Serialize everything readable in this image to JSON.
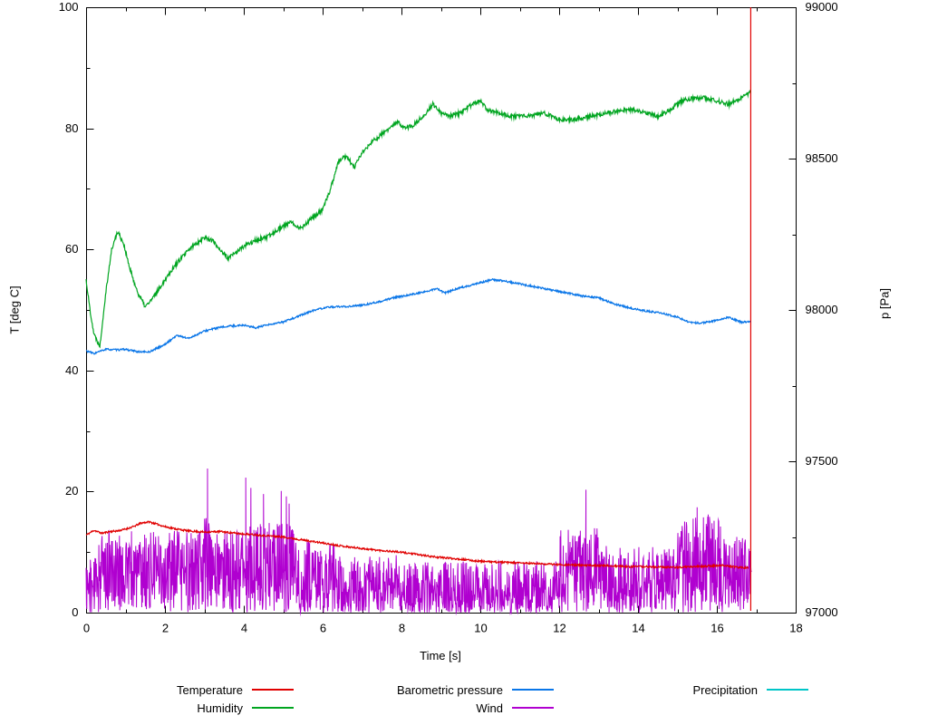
{
  "chart_data": {
    "type": "line",
    "title": "",
    "xlabel": "Time [s]",
    "ylabel_left": "T [deg C]",
    "ylabel_right": "p [Pa]",
    "x_range": [
      0,
      18
    ],
    "y_left_range": [
      0,
      100
    ],
    "y_right_range": [
      97000,
      99000
    ],
    "x_ticks": [
      0,
      2,
      4,
      6,
      8,
      10,
      12,
      14,
      16,
      18
    ],
    "x_minor_ticks": [
      1,
      3,
      5,
      7,
      9,
      11,
      13,
      15,
      17
    ],
    "y_left_ticks": [
      0,
      20,
      40,
      60,
      80,
      100
    ],
    "y_left_minor_ticks": [
      10,
      30,
      50,
      70,
      90
    ],
    "y_right_ticks": [
      97000,
      97500,
      98000,
      98500,
      99000
    ],
    "y_right_minor_ticks": [
      97250,
      97750,
      98250,
      98750
    ],
    "axis_color": "#000000",
    "background": "#ffffff",
    "grid": false,
    "legend_position": "below",
    "series": [
      {
        "name": "Temperature",
        "color": "#e00000",
        "axis": "left",
        "noise": 0.15,
        "seed": 11,
        "points": [
          [
            0,
            12.8
          ],
          [
            0.2,
            13.6
          ],
          [
            0.4,
            13.1
          ],
          [
            0.6,
            13.4
          ],
          [
            0.8,
            13.5
          ],
          [
            1.0,
            13.8
          ],
          [
            1.2,
            14.2
          ],
          [
            1.4,
            14.8
          ],
          [
            1.6,
            15.0
          ],
          [
            1.8,
            14.6
          ],
          [
            2.0,
            14.2
          ],
          [
            2.3,
            13.8
          ],
          [
            2.6,
            13.5
          ],
          [
            3.0,
            13.3
          ],
          [
            3.4,
            13.4
          ],
          [
            3.8,
            13.1
          ],
          [
            4.2,
            12.9
          ],
          [
            4.6,
            12.7
          ],
          [
            5.0,
            12.5
          ],
          [
            5.4,
            12.1
          ],
          [
            5.8,
            11.7
          ],
          [
            6.2,
            11.3
          ],
          [
            6.6,
            10.9
          ],
          [
            7.0,
            10.6
          ],
          [
            7.4,
            10.3
          ],
          [
            7.8,
            10.1
          ],
          [
            8.2,
            9.8
          ],
          [
            8.6,
            9.4
          ],
          [
            9.0,
            9.1
          ],
          [
            9.4,
            8.9
          ],
          [
            9.8,
            8.6
          ],
          [
            10.2,
            8.4
          ],
          [
            10.6,
            8.3
          ],
          [
            11.0,
            8.2
          ],
          [
            11.4,
            8.1
          ],
          [
            11.8,
            8.0
          ],
          [
            12.2,
            7.9
          ],
          [
            12.6,
            7.8
          ],
          [
            13.0,
            7.8
          ],
          [
            13.4,
            7.7
          ],
          [
            13.8,
            7.6
          ],
          [
            14.2,
            7.6
          ],
          [
            14.6,
            7.5
          ],
          [
            15.0,
            7.5
          ],
          [
            15.4,
            7.6
          ],
          [
            15.8,
            7.7
          ],
          [
            16.2,
            7.8
          ],
          [
            16.5,
            7.5
          ],
          [
            16.8,
            7.4
          ]
        ],
        "end_spike": {
          "x": 16.86,
          "bottom": 0.3,
          "top": 100
        }
      },
      {
        "name": "Humidity",
        "color": "#00a520",
        "axis": "left",
        "noise": 0.35,
        "seed": 22,
        "points": [
          [
            0,
            55
          ],
          [
            0.1,
            50
          ],
          [
            0.2,
            46
          ],
          [
            0.35,
            44
          ],
          [
            0.5,
            53
          ],
          [
            0.65,
            60
          ],
          [
            0.8,
            63
          ],
          [
            0.95,
            61
          ],
          [
            1.1,
            57
          ],
          [
            1.3,
            53
          ],
          [
            1.5,
            50.5
          ],
          [
            1.7,
            52
          ],
          [
            1.9,
            54
          ],
          [
            2.1,
            56
          ],
          [
            2.4,
            58.5
          ],
          [
            2.7,
            60.5
          ],
          [
            3.0,
            62
          ],
          [
            3.2,
            61.5
          ],
          [
            3.4,
            60
          ],
          [
            3.6,
            58.5
          ],
          [
            3.8,
            59.5
          ],
          [
            4.0,
            60.5
          ],
          [
            4.3,
            61.5
          ],
          [
            4.6,
            62
          ],
          [
            4.9,
            63.5
          ],
          [
            5.2,
            64.5
          ],
          [
            5.45,
            63.5
          ],
          [
            5.7,
            65
          ],
          [
            6.0,
            66.5
          ],
          [
            6.2,
            70
          ],
          [
            6.4,
            74.5
          ],
          [
            6.6,
            75.5
          ],
          [
            6.8,
            73.5
          ],
          [
            7.0,
            76
          ],
          [
            7.3,
            78
          ],
          [
            7.6,
            79.5
          ],
          [
            7.9,
            81
          ],
          [
            8.1,
            80
          ],
          [
            8.3,
            80.5
          ],
          [
            8.55,
            82
          ],
          [
            8.8,
            84
          ],
          [
            9.0,
            82.5
          ],
          [
            9.2,
            82
          ],
          [
            9.5,
            82.5
          ],
          [
            9.8,
            84
          ],
          [
            10.0,
            84.5
          ],
          [
            10.2,
            83
          ],
          [
            10.5,
            82.5
          ],
          [
            10.8,
            82
          ],
          [
            11.2,
            82
          ],
          [
            11.6,
            82.5
          ],
          [
            12.0,
            81.5
          ],
          [
            12.4,
            81.5
          ],
          [
            12.8,
            82
          ],
          [
            13.2,
            82.5
          ],
          [
            13.6,
            83
          ],
          [
            13.9,
            83
          ],
          [
            14.2,
            82.5
          ],
          [
            14.5,
            82
          ],
          [
            14.8,
            83
          ],
          [
            15.1,
            84.5
          ],
          [
            15.4,
            85
          ],
          [
            15.7,
            85
          ],
          [
            16.0,
            84.5
          ],
          [
            16.3,
            84
          ],
          [
            16.6,
            85
          ],
          [
            16.87,
            86
          ]
        ]
      },
      {
        "name": "Barometric pressure",
        "color": "#0a76e8",
        "axis": "right",
        "noise": 3,
        "seed": 33,
        "points": [
          [
            0,
            97865
          ],
          [
            0.2,
            97856
          ],
          [
            0.5,
            97870
          ],
          [
            0.8,
            97868
          ],
          [
            1.0,
            97870
          ],
          [
            1.3,
            97862
          ],
          [
            1.6,
            97861
          ],
          [
            2.0,
            97886
          ],
          [
            2.3,
            97916
          ],
          [
            2.6,
            97906
          ],
          [
            3.0,
            97930
          ],
          [
            3.3,
            97940
          ],
          [
            3.6,
            97946
          ],
          [
            4.0,
            97950
          ],
          [
            4.3,
            97941
          ],
          [
            4.6,
            97950
          ],
          [
            5.0,
            97960
          ],
          [
            5.4,
            97980
          ],
          [
            5.8,
            98000
          ],
          [
            6.2,
            98010
          ],
          [
            6.6,
            98011
          ],
          [
            7.0,
            98016
          ],
          [
            7.4,
            98026
          ],
          [
            7.8,
            98040
          ],
          [
            8.2,
            98050
          ],
          [
            8.6,
            98060
          ],
          [
            8.9,
            98070
          ],
          [
            9.1,
            98056
          ],
          [
            9.4,
            98070
          ],
          [
            9.7,
            98080
          ],
          [
            10.0,
            98090
          ],
          [
            10.3,
            98100
          ],
          [
            10.6,
            98096
          ],
          [
            11.0,
            98086
          ],
          [
            11.4,
            98076
          ],
          [
            11.8,
            98066
          ],
          [
            12.2,
            98056
          ],
          [
            12.6,
            98046
          ],
          [
            13.0,
            98040
          ],
          [
            13.4,
            98020
          ],
          [
            13.8,
            98006
          ],
          [
            14.2,
            97996
          ],
          [
            14.6,
            97990
          ],
          [
            15.0,
            97976
          ],
          [
            15.3,
            97960
          ],
          [
            15.6,
            97956
          ],
          [
            16.0,
            97966
          ],
          [
            16.3,
            97976
          ],
          [
            16.6,
            97960
          ],
          [
            16.87,
            97961
          ]
        ]
      },
      {
        "name": "Wind",
        "color": "#b000d0",
        "axis": "left",
        "type": "noise-band",
        "seed": 44,
        "step": 0.009,
        "segments": [
          {
            "x0": 0.0,
            "x1": 0.25,
            "max": 9,
            "pow": 1.1
          },
          {
            "x0": 0.25,
            "x1": 3.0,
            "max": 13.5,
            "pow": 1.0
          },
          {
            "x0": 3.0,
            "x1": 3.15,
            "max": 16,
            "pow": 0.9
          },
          {
            "x0": 3.15,
            "x1": 4.0,
            "max": 13.5,
            "pow": 1.0
          },
          {
            "x0": 4.0,
            "x1": 5.3,
            "max": 15,
            "pow": 0.95
          },
          {
            "x0": 5.3,
            "x1": 6.3,
            "max": 12,
            "pow": 1.2
          },
          {
            "x0": 6.3,
            "x1": 8.0,
            "max": 9.5,
            "pow": 1.3
          },
          {
            "x0": 8.0,
            "x1": 12.0,
            "max": 8.5,
            "pow": 1.4
          },
          {
            "x0": 12.0,
            "x1": 13.1,
            "max": 14,
            "pow": 1.0
          },
          {
            "x0": 13.1,
            "x1": 15.0,
            "max": 11,
            "pow": 1.2
          },
          {
            "x0": 15.0,
            "x1": 16.1,
            "max": 16,
            "pow": 1.0
          },
          {
            "x0": 16.1,
            "x1": 16.88,
            "max": 12.5,
            "pow": 1.0
          }
        ],
        "spikes": [
          [
            3.08,
            23.8
          ],
          [
            4.05,
            22.3
          ],
          [
            4.18,
            20.6
          ],
          [
            4.5,
            19.6
          ],
          [
            4.95,
            20.1
          ],
          [
            5.08,
            19.2
          ],
          [
            5.15,
            18.0
          ],
          [
            12.68,
            20.3
          ],
          [
            15.5,
            17.4
          ],
          [
            15.78,
            16.2
          ]
        ]
      },
      {
        "name": "Precipitation",
        "color": "#00c5c8",
        "axis": "left",
        "points": []
      }
    ]
  }
}
